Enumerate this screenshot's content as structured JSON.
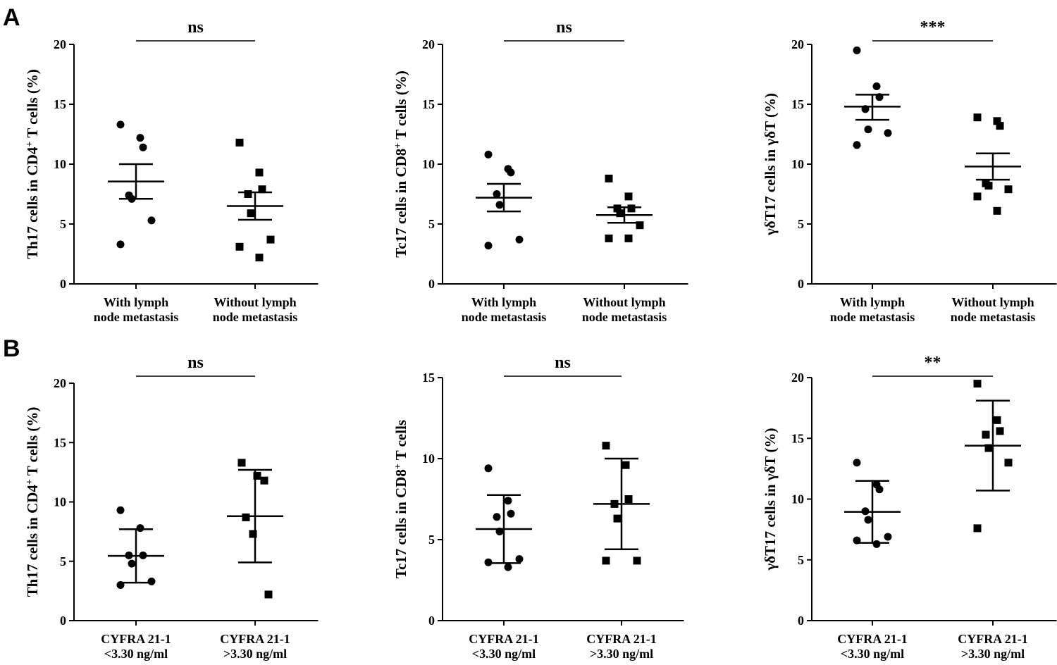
{
  "panel_labels": [
    "A",
    "B"
  ],
  "chart_data": [
    {
      "panel": "A",
      "type": "scatter",
      "ylabel": {
        "pre": "Th17 cells in CD4",
        "sup": "+",
        "post": " T cells (%)"
      },
      "ylim": [
        0,
        20
      ],
      "yticks": [
        "0",
        "5",
        "10",
        "15",
        "20"
      ],
      "categories": [
        [
          "With lymph",
          "node metastasis"
        ],
        [
          "Without lymph",
          "node metastasis"
        ]
      ],
      "significance": "ns",
      "error_style": "sem",
      "series": [
        {
          "marker": "circle",
          "values": [
            13.3,
            12.2,
            11.4,
            7.4,
            7.1,
            5.3,
            3.3
          ],
          "mean": 8.55,
          "upper": 10.0,
          "lower": 7.1
        },
        {
          "marker": "square",
          "values": [
            11.8,
            9.3,
            7.9,
            7.5,
            5.9,
            3.7,
            3.1,
            2.2
          ],
          "mean": 6.5,
          "upper": 7.65,
          "lower": 5.35
        }
      ]
    },
    {
      "panel": "A",
      "type": "scatter",
      "ylabel": {
        "pre": "Tc17 cells in CD8",
        "sup": "+",
        "post": " T cells (%)"
      },
      "ylim": [
        0,
        20
      ],
      "yticks": [
        "0",
        "5",
        "10",
        "15",
        "20"
      ],
      "categories": [
        [
          "With lymph",
          "node metastasis"
        ],
        [
          "Without lymph",
          "node metastasis"
        ]
      ],
      "significance": "ns",
      "error_style": "sem",
      "series": [
        {
          "marker": "circle",
          "values": [
            10.8,
            9.6,
            9.3,
            7.5,
            6.6,
            3.7,
            3.2
          ],
          "mean": 7.2,
          "upper": 8.35,
          "lower": 6.05
        },
        {
          "marker": "square",
          "values": [
            8.8,
            7.3,
            6.3,
            6.3,
            5.9,
            4.9,
            3.8,
            3.8
          ],
          "mean": 5.75,
          "upper": 6.4,
          "lower": 5.1
        }
      ]
    },
    {
      "panel": "A",
      "type": "scatter",
      "ylabel": {
        "pre": "γδT17 cells in γδT (%)",
        "sup": "",
        "post": ""
      },
      "ylim": [
        0,
        20
      ],
      "yticks": [
        "0",
        "5",
        "10",
        "15",
        "20"
      ],
      "categories": [
        [
          "With lymph",
          "node metastasis"
        ],
        [
          "Without lymph",
          "node metastasis"
        ]
      ],
      "significance": "***",
      "error_style": "sem",
      "series": [
        {
          "marker": "circle",
          "values": [
            19.5,
            16.5,
            15.6,
            14.6,
            12.9,
            12.6,
            11.6
          ],
          "mean": 14.8,
          "upper": 15.8,
          "lower": 13.7
        },
        {
          "marker": "square",
          "values": [
            13.9,
            13.6,
            13.2,
            8.4,
            8.2,
            7.9,
            7.3,
            6.1
          ],
          "mean": 9.8,
          "upper": 10.9,
          "lower": 8.7
        }
      ]
    },
    {
      "panel": "B",
      "type": "scatter",
      "ylabel": {
        "pre": "Th17 cells in CD4",
        "sup": "+",
        "post": " T cells (%)"
      },
      "ylim": [
        0,
        20
      ],
      "yticks": [
        "0",
        "5",
        "10",
        "15",
        "20"
      ],
      "categories": [
        [
          "CYFRA 21-1",
          "<3.30 ng/ml"
        ],
        [
          "CYFRA 21-1",
          ">3.30 ng/ml"
        ]
      ],
      "significance": "ns",
      "error_style": "sd",
      "series": [
        {
          "marker": "circle",
          "values": [
            9.3,
            7.8,
            5.5,
            5.5,
            4.8,
            3.3,
            3.0
          ],
          "mean": 5.45,
          "upper": 7.7,
          "lower": 3.2
        },
        {
          "marker": "square",
          "values": [
            13.3,
            12.2,
            11.8,
            8.7,
            7.3,
            2.2
          ],
          "mean": 8.8,
          "upper": 12.7,
          "lower": 4.9
        }
      ]
    },
    {
      "panel": "B",
      "type": "scatter",
      "ylabel": {
        "pre": "Tc17 cells in CD8",
        "sup": "+",
        "post": " T cells"
      },
      "ylim": [
        0,
        15
      ],
      "yticks": [
        "0",
        "5",
        "10",
        "15"
      ],
      "categories": [
        [
          "CYFRA 21-1",
          "<3.30 ng/ml"
        ],
        [
          "CYFRA 21-1",
          ">3.30 ng/ml"
        ]
      ],
      "significance": "ns",
      "error_style": "sd",
      "series": [
        {
          "marker": "circle",
          "values": [
            9.4,
            7.4,
            6.6,
            6.4,
            5.5,
            3.8,
            3.6,
            3.3
          ],
          "mean": 5.65,
          "upper": 7.75,
          "lower": 3.55
        },
        {
          "marker": "square",
          "values": [
            10.8,
            9.6,
            7.5,
            7.2,
            6.3,
            3.7,
            3.7
          ],
          "mean": 7.2,
          "upper": 10.0,
          "lower": 4.4
        }
      ]
    },
    {
      "panel": "B",
      "type": "scatter",
      "ylabel": {
        "pre": "γδT17 cells in γδT (%)",
        "sup": "",
        "post": ""
      },
      "ylim": [
        0,
        20
      ],
      "yticks": [
        "0",
        "5",
        "10",
        "15",
        "20"
      ],
      "categories": [
        [
          "CYFRA 21-1",
          "<3.30 ng/ml"
        ],
        [
          "CYFRA 21-1",
          ">3.30 ng/ml"
        ]
      ],
      "significance": "**",
      "error_style": "sd",
      "series": [
        {
          "marker": "circle",
          "values": [
            13.0,
            11.2,
            10.8,
            9.0,
            8.3,
            6.9,
            6.6,
            6.3
          ],
          "mean": 8.95,
          "upper": 11.5,
          "lower": 6.4
        },
        {
          "marker": "square",
          "values": [
            19.5,
            16.5,
            15.6,
            15.3,
            14.2,
            13.0,
            7.6
          ],
          "mean": 14.4,
          "upper": 18.1,
          "lower": 10.7
        }
      ]
    }
  ]
}
